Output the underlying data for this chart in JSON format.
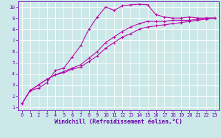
{
  "xlabel": "Windchill (Refroidissement éolien,°C)",
  "bg_color": "#cce8e8",
  "grid_color": "#ffffff",
  "line_color": "#bb00aa",
  "xlim": [
    -0.5,
    23.5
  ],
  "ylim": [
    0.7,
    10.5
  ],
  "xticks": [
    0,
    1,
    2,
    3,
    4,
    5,
    6,
    7,
    8,
    9,
    10,
    11,
    12,
    13,
    14,
    15,
    16,
    17,
    18,
    19,
    20,
    21,
    22,
    23
  ],
  "yticks": [
    1,
    2,
    3,
    4,
    5,
    6,
    7,
    8,
    9,
    10
  ],
  "series1_x": [
    0,
    1,
    2,
    3,
    4,
    5,
    6,
    7,
    8,
    9,
    10,
    11,
    12,
    13,
    14,
    15,
    16,
    17,
    18,
    19,
    20,
    21,
    22,
    23
  ],
  "series1_y": [
    1.3,
    2.5,
    2.7,
    3.2,
    4.3,
    4.5,
    5.5,
    6.5,
    8.0,
    9.1,
    10.0,
    9.7,
    10.1,
    10.2,
    10.25,
    10.2,
    9.3,
    9.1,
    9.0,
    9.0,
    9.1,
    9.0,
    9.0,
    9.0
  ],
  "series2_x": [
    0,
    1,
    2,
    3,
    4,
    5,
    6,
    7,
    8,
    9,
    10,
    11,
    12,
    13,
    14,
    15,
    16,
    17,
    18,
    19,
    20,
    21,
    22,
    23
  ],
  "series2_y": [
    1.3,
    2.5,
    3.0,
    3.5,
    3.9,
    4.2,
    4.5,
    4.8,
    5.4,
    6.0,
    6.8,
    7.3,
    7.8,
    8.2,
    8.5,
    8.7,
    8.7,
    8.7,
    8.8,
    8.8,
    8.8,
    8.9,
    9.0,
    9.0
  ],
  "series3_x": [
    0,
    1,
    2,
    3,
    4,
    5,
    6,
    7,
    8,
    9,
    10,
    11,
    12,
    13,
    14,
    15,
    16,
    17,
    18,
    19,
    20,
    21,
    22,
    23
  ],
  "series3_y": [
    1.3,
    2.5,
    3.0,
    3.5,
    3.9,
    4.1,
    4.4,
    4.6,
    5.1,
    5.6,
    6.3,
    6.8,
    7.3,
    7.6,
    8.0,
    8.2,
    8.3,
    8.4,
    8.5,
    8.6,
    8.7,
    8.8,
    8.9,
    9.0
  ],
  "marker": "+",
  "markersize": 3,
  "markeredgewidth": 0.8,
  "linewidth": 0.8,
  "tick_fontsize": 5.0,
  "xlabel_fontsize": 6.0,
  "spine_color": "#6600aa",
  "tick_color": "#6600aa",
  "label_color": "#6600aa"
}
